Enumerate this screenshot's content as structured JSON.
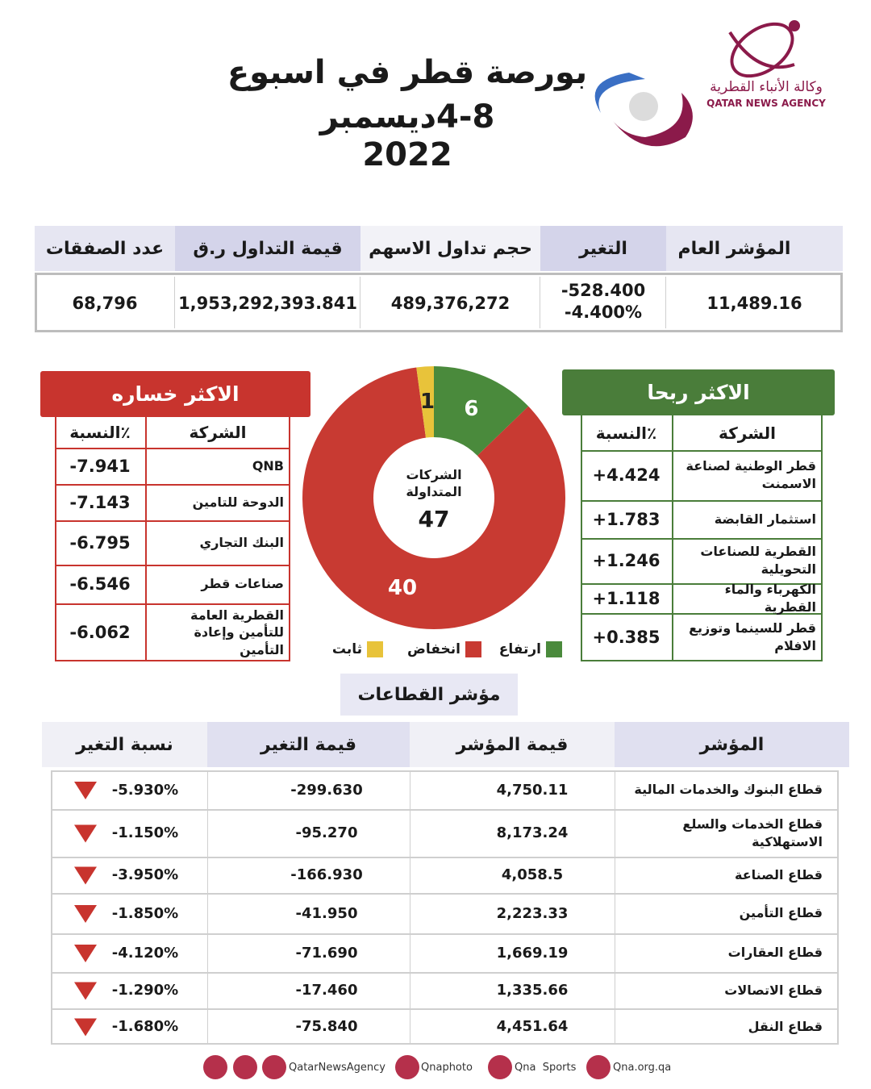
{
  "header": {
    "title_lines": [
      "بورصة قطر في اسبوع",
      "4-8ديسمبر",
      "2022"
    ],
    "agency_ar": "وكالة الأنباء القطرية",
    "agency_en": "QATAR NEWS AGENCY"
  },
  "summary": {
    "headers": [
      "المؤشر العام",
      "التغير",
      "حجم تداول الاسهم",
      "قيمة التداول ر.ق",
      "عدد الصفقات"
    ],
    "values": [
      "11,489.16",
      [
        "-528.400",
        "-4.400%"
      ],
      "489,376,272",
      "1,953,292,393.841",
      "68,796"
    ]
  },
  "gainers": {
    "title": "الاكثر ربحا",
    "headers": [
      "الشركة",
      "النسبة٪"
    ],
    "rows": [
      [
        "قطر الوطنية لصناعة الاسمنت",
        "+4.424"
      ],
      [
        "استثمار القابضة",
        "+1.783"
      ],
      [
        "القطرية للصناعات التحويلية",
        "+1.246"
      ],
      [
        "الكهرباء والماء القطرية",
        "+1.118"
      ],
      [
        "قطر للسينما وتوزيع الافلام",
        "+0.385"
      ]
    ]
  },
  "losers": {
    "title": "الاكثر خساره",
    "headers": [
      "الشركة",
      "النسبة٪"
    ],
    "rows": [
      [
        "QNB",
        "-7.941"
      ],
      [
        "الدوحة للتامين",
        "-7.143"
      ],
      [
        "البنك التجاري",
        "-6.795"
      ],
      [
        "صناعات قطر",
        "-6.546"
      ],
      [
        "القطرية العامة للتأمين وإعادة التأمين",
        "-6.062"
      ]
    ]
  },
  "chart_data": {
    "type": "pie",
    "donut": true,
    "categories": [
      "ارتفاع",
      "انخفاض",
      "ثابت"
    ],
    "values": [
      6,
      40,
      1
    ],
    "colors": [
      "#4a8a3c",
      "#c83a32",
      "#e8c33a"
    ],
    "center_label": "الشركات المتداولة",
    "center_value": 47
  },
  "sectors": {
    "title": "مؤشر القطاعات",
    "headers": [
      "المؤشر",
      "قيمة المؤشر",
      "قيمة التغير",
      "نسبة التغير"
    ],
    "rows": [
      [
        "قطاع البنوك والخدمات المالية",
        "4,750.11",
        "-299.630",
        "-5.930%"
      ],
      [
        "قطاع  الخدمات والسلع الاستهلاكية",
        "8,173.24",
        "-95.270",
        "-1.150%"
      ],
      [
        "قطاع الصناعة",
        "4,058.5",
        "-166.930",
        "-3.950%"
      ],
      [
        "قطاع التأمين",
        "2,223.33",
        "-41.950",
        "-1.850%"
      ],
      [
        "قطاع العقارات",
        "1,669.19",
        "-71.690",
        "-4.120%"
      ],
      [
        "قطاع الاتصالات",
        "1,335.66",
        "-17.460",
        "-1.290%"
      ],
      [
        "قطاع النقل",
        "4,451.64",
        "-75.840",
        "-1.680%"
      ]
    ]
  },
  "footer": {
    "handles": [
      "QatarNewsAgency",
      "Qnaphoto",
      "Qna  Sports",
      "Qna.org.qa"
    ]
  }
}
